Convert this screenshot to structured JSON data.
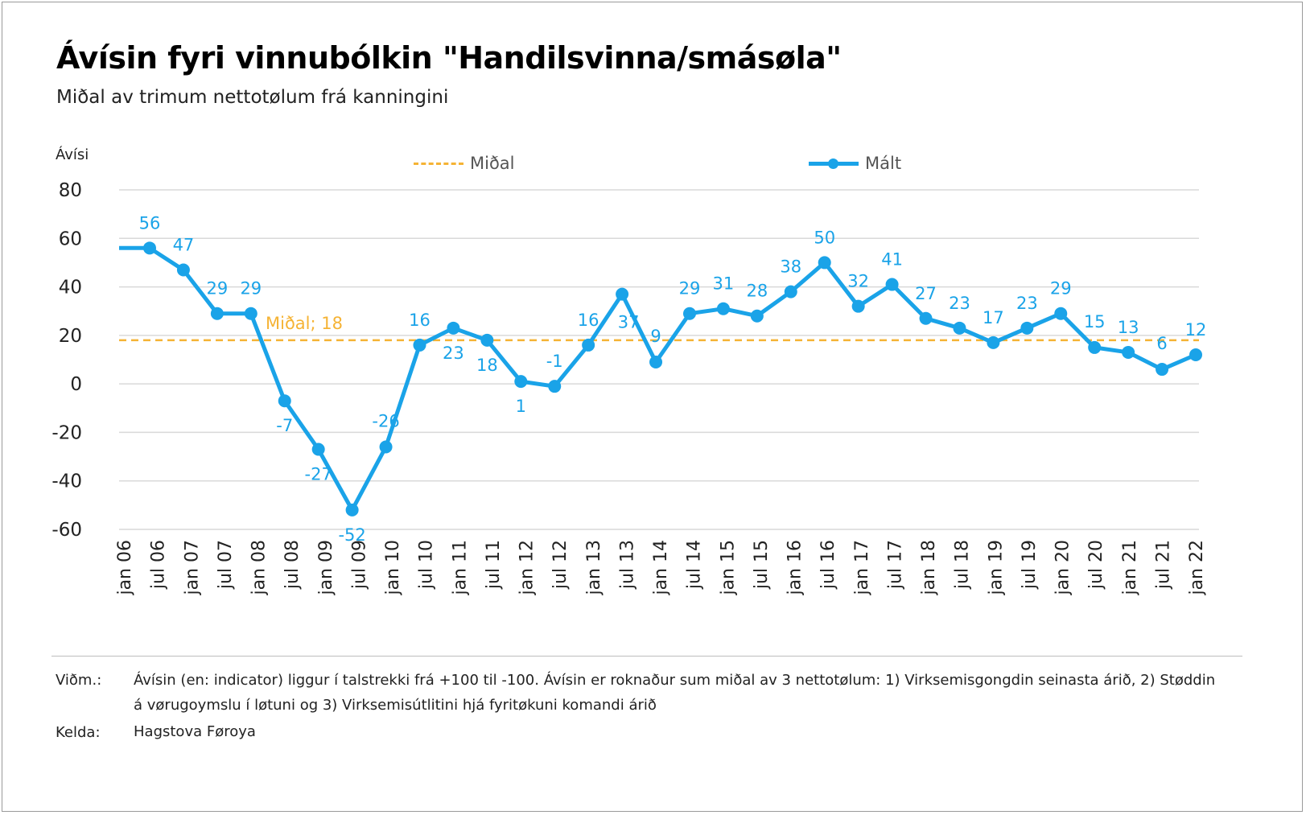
{
  "title": "Ávísin fyri vinnubólkin \"Handilsvinna/smásøla\"",
  "subtitle": "Miðal av trimum nettotølum frá kanningini",
  "colors": {
    "measured": "#1aa3e8",
    "average": "#f5b335",
    "grid": "#d9d9d9",
    "axis_text": "#222222"
  },
  "legend": {
    "average_label": "Miðal",
    "measured_label": "Mált"
  },
  "notes": {
    "note_key": "Viðm.:",
    "note_text": "Ávísin (en: indicator) liggur í talstrekki frá +100 til -100. Ávísin er roknaður sum miðal av 3 nettotølum: 1) Virksemisgongdin seinasta árið, 2) Støddin á vørugoymslu í løtuni og 3) Virksemisútlitini hjá fyritøkuni komandi árið",
    "source_key": "Kelda:",
    "source_text": "Hagstova Føroya"
  },
  "chart_data": {
    "type": "line",
    "title": "Ávísin fyri vinnubólkin \"Handilsvinna/smásøla\"",
    "subtitle": "Miðal av trimum nettotølum frá kanningini",
    "ylabel": "Ávísi",
    "xlabel": "",
    "ylim": [
      -60,
      80
    ],
    "yticks": [
      80,
      60,
      40,
      20,
      0,
      -20,
      -40,
      -60
    ],
    "grid": "horizontal",
    "legend_position": "top",
    "categories": [
      "jan 06",
      "jul 06",
      "jan 07",
      "jul 07",
      "jan 08",
      "jul 08",
      "jan 09",
      "jul 09",
      "jan 10",
      "jul 10",
      "jan 11",
      "jul 11",
      "jan 12",
      "jul 12",
      "jan 13",
      "jul 13",
      "jan 14",
      "jul 14",
      "jan 15",
      "jul 15",
      "jan 16",
      "jul 16",
      "jan 17",
      "jul 17",
      "jan 18",
      "jul 18",
      "jan 19",
      "jul 19",
      "jan 20",
      "jul 20",
      "jan 21",
      "jul 21",
      "jan 22"
    ],
    "series": [
      {
        "name": "Mált",
        "points": [
          {
            "x": "jan 06",
            "y": 56,
            "label": ""
          },
          {
            "x": "jan 06",
            "y": 56,
            "label": "56"
          },
          {
            "x": "jan 07",
            "y": 47,
            "label": "47"
          },
          {
            "x": "jan 07",
            "y": 29,
            "label": "29"
          },
          {
            "x": "jan 08",
            "y": 29,
            "label": "29"
          },
          {
            "x": "jul 08",
            "y": -7,
            "label": "-7"
          },
          {
            "x": "jul 09",
            "y": -27,
            "label": "-27"
          },
          {
            "x": "jul 09",
            "y": -52,
            "label": "-52"
          },
          {
            "x": "jan 10",
            "y": -26,
            "label": "-26"
          },
          {
            "x": "jul 10",
            "y": 16,
            "label": "16"
          },
          {
            "x": "jan 11",
            "y": 23,
            "label": "23"
          },
          {
            "x": "jul 11",
            "y": 18,
            "label": "18"
          },
          {
            "x": "jan 12",
            "y": 1,
            "label": "1"
          },
          {
            "x": "jul 12",
            "y": -1,
            "label": "-1"
          },
          {
            "x": "jan 13",
            "y": 16,
            "label": "16"
          },
          {
            "x": "jul 13",
            "y": 37,
            "label": "37"
          },
          {
            "x": "jan 14",
            "y": 9,
            "label": "9"
          },
          {
            "x": "jul 14",
            "y": 29,
            "label": "29"
          },
          {
            "x": "jan 15",
            "y": 31,
            "label": "31"
          },
          {
            "x": "jul 15",
            "y": 28,
            "label": "28"
          },
          {
            "x": "jan 16",
            "y": 38,
            "label": "38"
          },
          {
            "x": "jul 16",
            "y": 50,
            "label": "50"
          },
          {
            "x": "jan 17",
            "y": 32,
            "label": "32"
          },
          {
            "x": "jul 17",
            "y": 41,
            "label": "41"
          },
          {
            "x": "jan 18",
            "y": 27,
            "label": "27"
          },
          {
            "x": "jul 18",
            "y": 23,
            "label": "23"
          },
          {
            "x": "jan 19",
            "y": 17,
            "label": "17"
          },
          {
            "x": "jul 19",
            "y": 23,
            "label": "23"
          },
          {
            "x": "jan 20",
            "y": 29,
            "label": "29"
          },
          {
            "x": "jul 20",
            "y": 15,
            "label": "15"
          },
          {
            "x": "jan 21",
            "y": 13,
            "label": "13"
          },
          {
            "x": "jul 21",
            "y": 6,
            "label": "6"
          },
          {
            "x": "jan 22",
            "y": 12,
            "label": "12"
          }
        ]
      },
      {
        "name": "Miðal",
        "constant": 18,
        "annotation": "Miðal; 18"
      }
    ]
  }
}
